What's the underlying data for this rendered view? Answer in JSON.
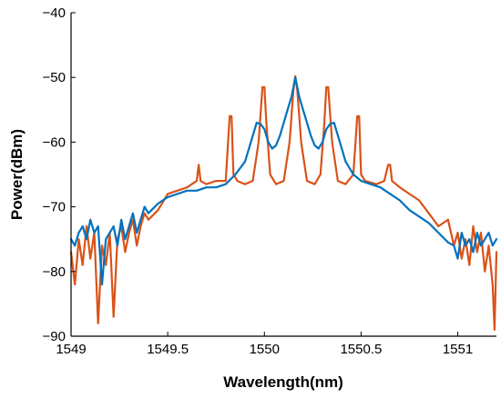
{
  "chart_data": {
    "type": "line",
    "title": "",
    "xlabel": "Wavelength(nm)",
    "ylabel": "Power(dBm)",
    "xlim": [
      1549,
      1551.2
    ],
    "ylim": [
      -90,
      -40
    ],
    "xticks": [
      1549,
      1549.5,
      1550,
      1550.5,
      1551
    ],
    "xtick_labels": [
      "1549",
      "1549.5",
      "1550",
      "1550.5",
      "1551"
    ],
    "yticks": [
      -40,
      -50,
      -60,
      -70,
      -80,
      -90
    ],
    "ytick_labels": [
      "−40",
      "−50",
      "−60",
      "−70",
      "−80",
      "−90"
    ],
    "grid": false,
    "legend": null,
    "series": [
      {
        "color": "#d95319",
        "x": [
          1549.0,
          1549.02,
          1549.04,
          1549.06,
          1549.08,
          1549.1,
          1549.12,
          1549.14,
          1549.16,
          1549.18,
          1549.2,
          1549.22,
          1549.24,
          1549.26,
          1549.28,
          1549.3,
          1549.32,
          1549.34,
          1549.36,
          1549.38,
          1549.4,
          1549.45,
          1549.5,
          1549.55,
          1549.6,
          1549.65,
          1549.66,
          1549.67,
          1549.7,
          1549.75,
          1549.8,
          1549.82,
          1549.83,
          1549.84,
          1549.86,
          1549.9,
          1549.94,
          1549.97,
          1549.99,
          1550.0,
          1550.01,
          1550.03,
          1550.06,
          1550.1,
          1550.13,
          1550.15,
          1550.16,
          1550.17,
          1550.19,
          1550.22,
          1550.26,
          1550.29,
          1550.31,
          1550.32,
          1550.33,
          1550.35,
          1550.38,
          1550.42,
          1550.46,
          1550.48,
          1550.49,
          1550.5,
          1550.52,
          1550.58,
          1550.62,
          1550.64,
          1550.65,
          1550.66,
          1550.7,
          1550.75,
          1550.8,
          1550.85,
          1550.9,
          1550.95,
          1550.98,
          1551.0,
          1551.02,
          1551.04,
          1551.06,
          1551.08,
          1551.1,
          1551.12,
          1551.14,
          1551.16,
          1551.18,
          1551.19,
          1551.2
        ],
        "y": [
          -77,
          -82,
          -75,
          -79,
          -73,
          -78,
          -74,
          -88,
          -76,
          -79,
          -74,
          -87,
          -75,
          -73,
          -77,
          -74,
          -72,
          -76,
          -73,
          -71,
          -72,
          -70.5,
          -68,
          -67.5,
          -67,
          -66,
          -63.5,
          -66,
          -66.5,
          -66,
          -66,
          -56,
          -56,
          -65,
          -66,
          -66.5,
          -66,
          -60,
          -51.5,
          -51.5,
          -57,
          -65,
          -66.5,
          -66,
          -60,
          -52,
          -49.8,
          -52,
          -60,
          -66,
          -66.5,
          -65,
          -57,
          -51.5,
          -51.5,
          -60,
          -66,
          -66.5,
          -65,
          -56,
          -56,
          -65,
          -66,
          -66.5,
          -66,
          -63.5,
          -63.5,
          -66,
          -67,
          -68,
          -69,
          -71,
          -73,
          -72,
          -76,
          -74,
          -78,
          -75,
          -79,
          -73,
          -77,
          -74,
          -80,
          -76,
          -82,
          -89,
          -77
        ]
      },
      {
        "color": "#0072bd",
        "x": [
          1549.0,
          1549.02,
          1549.04,
          1549.06,
          1549.08,
          1549.1,
          1549.12,
          1549.14,
          1549.16,
          1549.18,
          1549.2,
          1549.22,
          1549.24,
          1549.26,
          1549.28,
          1549.3,
          1549.32,
          1549.34,
          1549.36,
          1549.38,
          1549.4,
          1549.45,
          1549.5,
          1549.55,
          1549.6,
          1549.65,
          1549.7,
          1549.75,
          1549.8,
          1549.85,
          1549.9,
          1549.93,
          1549.96,
          1549.98,
          1550.0,
          1550.02,
          1550.04,
          1550.06,
          1550.08,
          1550.1,
          1550.12,
          1550.14,
          1550.16,
          1550.18,
          1550.2,
          1550.22,
          1550.24,
          1550.26,
          1550.28,
          1550.3,
          1550.32,
          1550.34,
          1550.36,
          1550.39,
          1550.42,
          1550.46,
          1550.5,
          1550.55,
          1550.6,
          1550.65,
          1550.7,
          1550.75,
          1550.8,
          1550.85,
          1550.9,
          1550.95,
          1550.98,
          1551.0,
          1551.02,
          1551.04,
          1551.06,
          1551.08,
          1551.1,
          1551.12,
          1551.14,
          1551.16,
          1551.18,
          1551.2
        ],
        "y": [
          -75,
          -76,
          -74,
          -73,
          -75,
          -72,
          -74,
          -73,
          -82,
          -75,
          -74,
          -73,
          -76,
          -72,
          -75,
          -73,
          -71,
          -74,
          -72,
          -70,
          -71,
          -69.5,
          -68.5,
          -68,
          -67.5,
          -67.5,
          -67,
          -67,
          -66.5,
          -65,
          -63,
          -60,
          -57,
          -57.2,
          -58,
          -60,
          -61,
          -60.5,
          -59,
          -57,
          -55,
          -53,
          -50,
          -53,
          -55,
          -57,
          -59,
          -60.5,
          -61,
          -60,
          -58,
          -57.2,
          -57,
          -60,
          -63,
          -65,
          -66,
          -66.5,
          -67,
          -68,
          -69,
          -70.5,
          -71.5,
          -72.5,
          -74,
          -75.5,
          -76,
          -78,
          -74,
          -76,
          -75,
          -77,
          -74,
          -76,
          -75,
          -74,
          -76,
          -75
        ]
      }
    ]
  }
}
